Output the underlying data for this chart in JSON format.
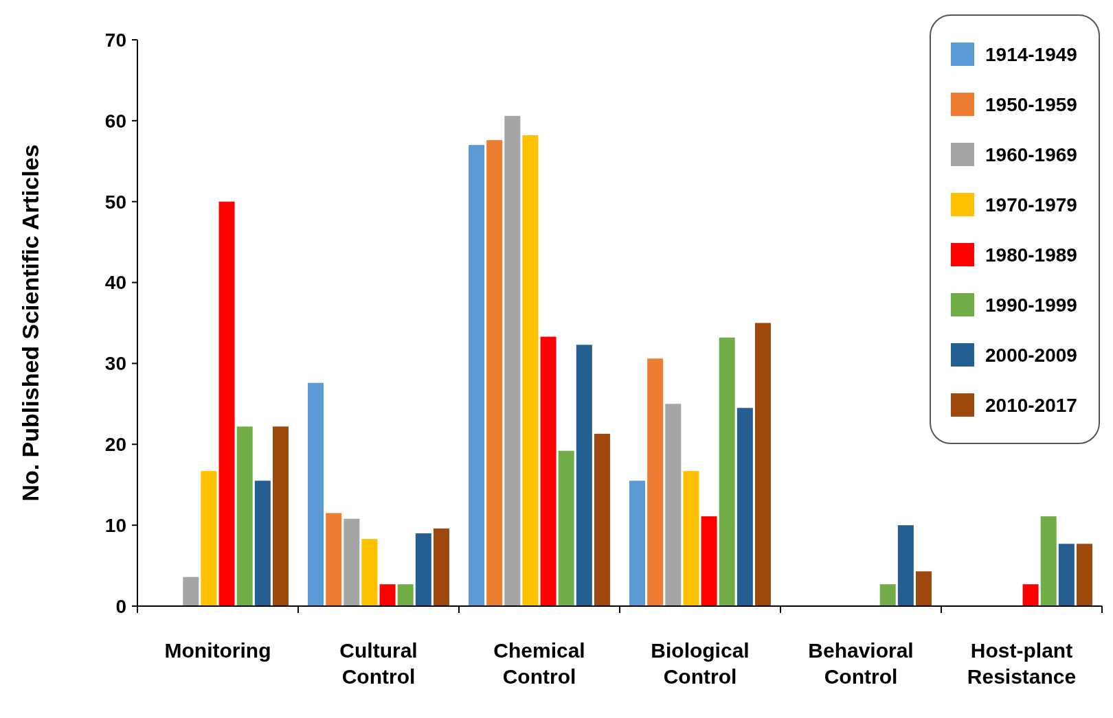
{
  "chart_data": {
    "type": "bar",
    "ylabel": "No. Published Scientific Articles",
    "categories": [
      "Monitoring",
      "Cultural Control",
      "Chemical Control",
      "Biological Control",
      "Behavioral Control",
      "Host-plant Resistance"
    ],
    "series": [
      {
        "name": "1914-1949",
        "color": "#5b9bd5",
        "values": [
          0,
          27.6,
          57,
          15.5,
          0,
          0
        ]
      },
      {
        "name": "1950-1959",
        "color": "#ed7d31",
        "values": [
          0,
          11.5,
          57.6,
          30.6,
          0,
          0
        ]
      },
      {
        "name": "1960-1969",
        "color": "#a5a5a5",
        "values": [
          3.6,
          10.8,
          60.6,
          25,
          0,
          0
        ]
      },
      {
        "name": "1970-1979",
        "color": "#ffc000",
        "values": [
          16.7,
          8.3,
          58.2,
          16.7,
          0,
          0
        ]
      },
      {
        "name": "1980-1989",
        "color": "#ff0000",
        "values": [
          50,
          2.7,
          33.3,
          11.1,
          0,
          2.7
        ]
      },
      {
        "name": "1990-1999",
        "color": "#70ad47",
        "values": [
          22.2,
          2.7,
          19.2,
          33.2,
          2.7,
          11.1
        ]
      },
      {
        "name": "2000-2009",
        "color": "#255e91",
        "values": [
          15.5,
          9,
          32.3,
          24.5,
          10,
          7.7
        ]
      },
      {
        "name": "2010-2017",
        "color": "#9e480e",
        "values": [
          22.2,
          9.6,
          21.3,
          35,
          4.3,
          7.7
        ]
      }
    ],
    "ylim": [
      0,
      70
    ],
    "yticks": [
      0,
      10,
      20,
      30,
      40,
      50,
      60,
      70
    ],
    "grid": false,
    "legend": "top right"
  }
}
